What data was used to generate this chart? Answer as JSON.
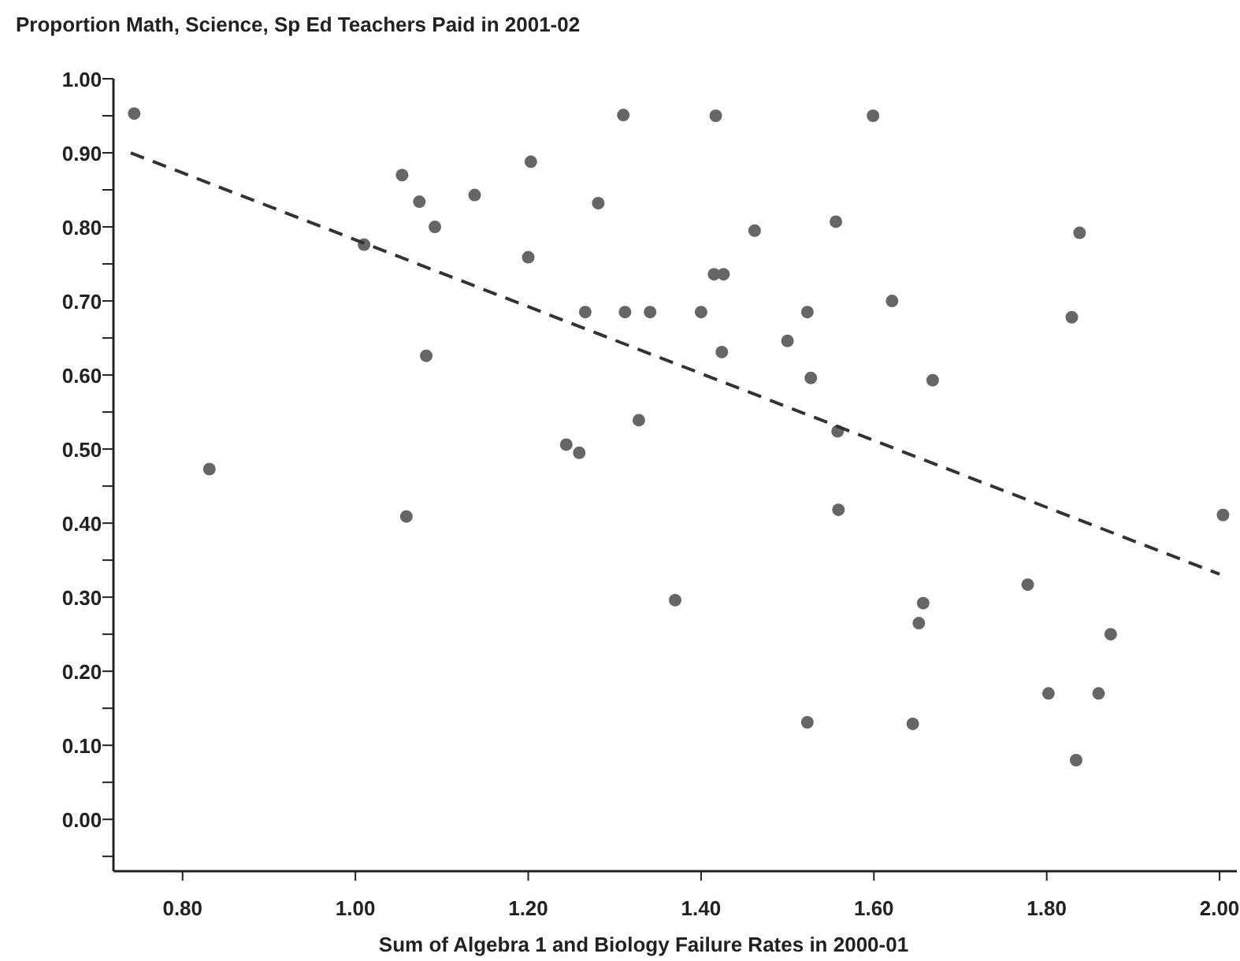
{
  "chart_data": {
    "type": "scatter",
    "title": "Proportion Math, Science, Sp Ed Teachers Paid in 2001-02",
    "xlabel": "Sum of Algebra 1 and Biology Failure Rates in 2000-01",
    "xlim": [
      0.72,
      2.02
    ],
    "ylim": [
      -0.07,
      1.0
    ],
    "xticks": [
      {
        "value": 0.8,
        "label": "0.80"
      },
      {
        "value": 1.0,
        "label": "1.00"
      },
      {
        "value": 1.2,
        "label": "1.20"
      },
      {
        "value": 1.4,
        "label": "1.40"
      },
      {
        "value": 1.6,
        "label": "1.60"
      },
      {
        "value": 1.8,
        "label": "1.80"
      },
      {
        "value": 2.0,
        "label": "2.00"
      }
    ],
    "yticks": [
      {
        "value": -0.05,
        "label": null
      },
      {
        "value": 0,
        "label": "0.00"
      },
      {
        "value": 0.05,
        "label": null
      },
      {
        "value": 0.1,
        "label": "0.10"
      },
      {
        "value": 0.15,
        "label": null
      },
      {
        "value": 0.2,
        "label": "0.20"
      },
      {
        "value": 0.25,
        "label": null
      },
      {
        "value": 0.3,
        "label": "0.30"
      },
      {
        "value": 0.35,
        "label": null
      },
      {
        "value": 0.4,
        "label": "0.40"
      },
      {
        "value": 0.45,
        "label": null
      },
      {
        "value": 0.5,
        "label": "0.50"
      },
      {
        "value": 0.55,
        "label": null
      },
      {
        "value": 0.6,
        "label": "0.60"
      },
      {
        "value": 0.65,
        "label": null
      },
      {
        "value": 0.7,
        "label": "0.70"
      },
      {
        "value": 0.75,
        "label": null
      },
      {
        "value": 0.8,
        "label": "0.80"
      },
      {
        "value": 0.85,
        "label": null
      },
      {
        "value": 0.9,
        "label": "0.90"
      },
      {
        "value": 0.95,
        "label": null
      },
      {
        "value": 1.0,
        "label": "1.00"
      }
    ],
    "grid": false,
    "marker": "circle",
    "series": [
      {
        "color": "#666666",
        "x": [
          0.744,
          0.831,
          1.054,
          1.074,
          1.092,
          1.01,
          1.082,
          1.138,
          1.203,
          1.2,
          1.281,
          1.266,
          1.312,
          1.244,
          1.259,
          1.31,
          1.417,
          1.599,
          1.462,
          1.556,
          1.838,
          1.415,
          1.426,
          1.341,
          1.4,
          1.523,
          1.621,
          1.829,
          1.424,
          1.5,
          1.527,
          1.668,
          1.328,
          1.558,
          1.559,
          2.004,
          1.37,
          1.778,
          1.657,
          1.652,
          1.874,
          1.802,
          1.86,
          1.523,
          1.645,
          1.834,
          1.059
        ],
        "values": [
          0.953,
          0.473,
          0.87,
          0.834,
          0.8,
          0.776,
          0.626,
          0.843,
          0.888,
          0.759,
          0.832,
          0.685,
          0.685,
          0.506,
          0.495,
          0.951,
          0.95,
          0.95,
          0.795,
          0.807,
          0.792,
          0.736,
          0.736,
          0.685,
          0.685,
          0.685,
          0.7,
          0.678,
          0.631,
          0.646,
          0.596,
          0.593,
          0.539,
          0.524,
          0.418,
          0.411,
          0.296,
          0.317,
          0.292,
          0.265,
          0.25,
          0.17,
          0.17,
          0.131,
          0.129,
          0.08,
          0.409
        ]
      },
      {
        "type": "line",
        "color": "#333333",
        "line_style": "dashed",
        "marker": "none",
        "x": [
          0.74,
          2.0
        ],
        "values": [
          0.9,
          0.331
        ]
      }
    ]
  }
}
